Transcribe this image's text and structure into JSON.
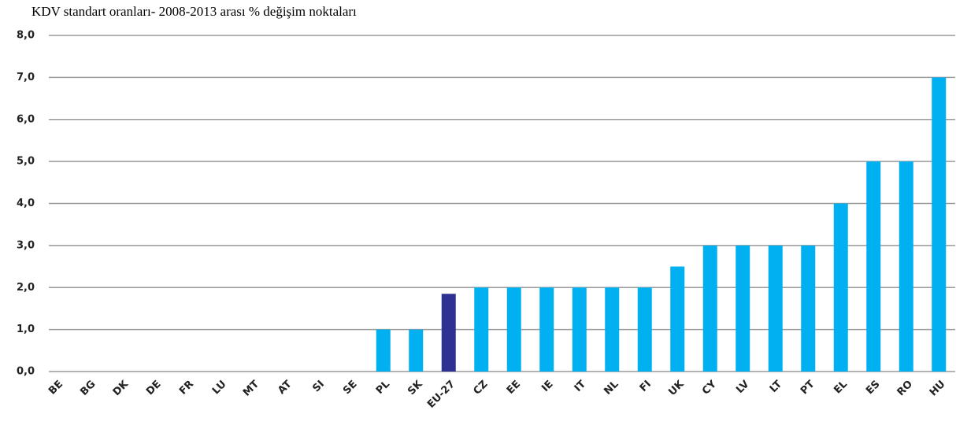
{
  "chart_data": {
    "type": "bar",
    "title": "KDV standart oranları- 2008-2013 arası % değişim noktaları",
    "categories": [
      "BE",
      "BG",
      "DK",
      "DE",
      "FR",
      "LU",
      "MT",
      "AT",
      "SI",
      "SE",
      "PL",
      "SK",
      "EU-27",
      "CZ",
      "EE",
      "IE",
      "IT",
      "NL",
      "FI",
      "UK",
      "CY",
      "LV",
      "LT",
      "PT",
      "EL",
      "ES",
      "RO",
      "HU"
    ],
    "values": [
      0,
      0,
      0,
      0,
      0,
      0,
      0,
      0,
      0,
      0,
      1,
      1,
      1.85,
      2,
      2,
      2,
      2,
      2,
      2,
      2.5,
      3,
      3,
      3,
      3,
      4,
      5,
      5,
      7
    ],
    "colors": [
      "#00b0f0",
      "#00b0f0",
      "#00b0f0",
      "#00b0f0",
      "#00b0f0",
      "#00b0f0",
      "#00b0f0",
      "#00b0f0",
      "#00b0f0",
      "#00b0f0",
      "#00b0f0",
      "#00b0f0",
      "#2e3192",
      "#00b0f0",
      "#00b0f0",
      "#00b0f0",
      "#00b0f0",
      "#00b0f0",
      "#00b0f0",
      "#00b0f0",
      "#00b0f0",
      "#00b0f0",
      "#00b0f0",
      "#00b0f0",
      "#00b0f0",
      "#00b0f0",
      "#00b0f0",
      "#00b0f0"
    ],
    "ylim": [
      0,
      8
    ],
    "yticks": [
      {
        "value": 0,
        "label": "0,0"
      },
      {
        "value": 1,
        "label": "1,0"
      },
      {
        "value": 2,
        "label": "2,0"
      },
      {
        "value": 3,
        "label": "3,0"
      },
      {
        "value": 4,
        "label": "4,0"
      },
      {
        "value": 5,
        "label": "5,0"
      },
      {
        "value": 6,
        "label": "6,0"
      },
      {
        "value": 7,
        "label": "7,0"
      },
      {
        "value": 8,
        "label": "8,0"
      }
    ],
    "grid": true
  }
}
